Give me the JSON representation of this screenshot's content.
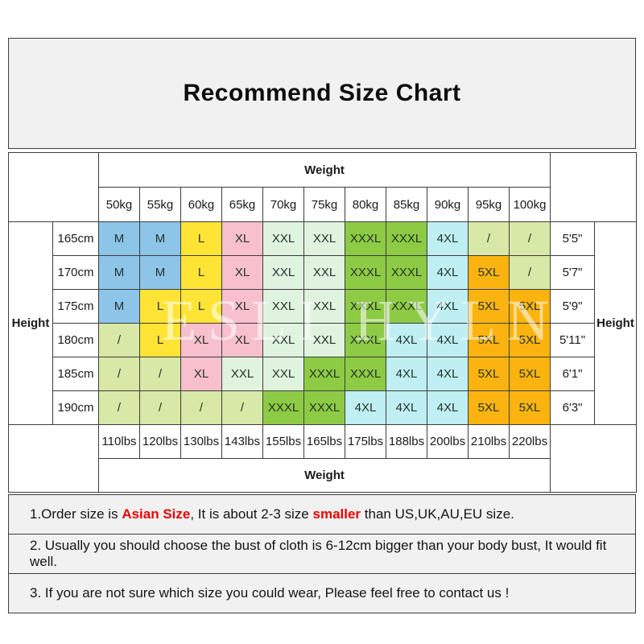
{
  "title": "Recommend Size Chart",
  "watermark": "ESLI HYLN",
  "labels": {
    "weight_top": "Weight",
    "weight_bottom": "Weight",
    "height_left": "Height",
    "height_right": "Height"
  },
  "chart_data": {
    "type": "table",
    "title": "Recommend Size Chart",
    "columns_weight_kg": [
      "50kg",
      "55kg",
      "60kg",
      "65kg",
      "70kg",
      "75kg",
      "80kg",
      "85kg",
      "90kg",
      "95kg",
      "100kg"
    ],
    "columns_weight_lbs": [
      "110lbs",
      "120lbs",
      "130lbs",
      "143lbs",
      "155lbs",
      "165lbs",
      "175lbs",
      "188lbs",
      "200lbs",
      "210lbs",
      "220lbs"
    ],
    "rows": [
      {
        "height_cm": "165cm",
        "height_ft": "5'5\"",
        "sizes": [
          "M",
          "M",
          "L",
          "XL",
          "XXL",
          "XXL",
          "XXXL",
          "XXXL",
          "4XL",
          "/",
          "/"
        ]
      },
      {
        "height_cm": "170cm",
        "height_ft": "5'7\"",
        "sizes": [
          "M",
          "M",
          "L",
          "XL",
          "XXL",
          "XXL",
          "XXXL",
          "XXXL",
          "4XL",
          "5XL",
          "/"
        ]
      },
      {
        "height_cm": "175cm",
        "height_ft": "5'9\"",
        "sizes": [
          "M",
          "L",
          "L",
          "XL",
          "XXL",
          "XXL",
          "XXXL",
          "XXXL",
          "4XL",
          "5XL",
          "5XL"
        ]
      },
      {
        "height_cm": "180cm",
        "height_ft": "5'11\"",
        "sizes": [
          "/",
          "L",
          "XL",
          "XL",
          "XXL",
          "XXL",
          "XXXL",
          "4XL",
          "4XL",
          "5XL",
          "5XL"
        ]
      },
      {
        "height_cm": "185cm",
        "height_ft": "6'1\"",
        "sizes": [
          "/",
          "/",
          "XL",
          "XXL",
          "XXL",
          "XXXL",
          "XXXL",
          "4XL",
          "4XL",
          "5XL",
          "5XL"
        ]
      },
      {
        "height_cm": "190cm",
        "height_ft": "6'3\"",
        "sizes": [
          "/",
          "/",
          "/",
          "/",
          "XXXL",
          "XXXL",
          "4XL",
          "4XL",
          "4XL",
          "5XL",
          "5XL"
        ]
      }
    ],
    "size_colors": {
      "M": "#8cc5e8",
      "L": "#ffe436",
      "XL": "#f8c0cc",
      "XXL": "#e0f3df",
      "XXXL": "#8dcb45",
      "4XL": "#bfeff2",
      "5XL": "#fbb40f",
      "/": "#d8e8a6"
    }
  },
  "notes": {
    "note1_parts": [
      {
        "text": "1.Order size is ",
        "red": false
      },
      {
        "text": "Asian Size",
        "red": true
      },
      {
        "text": ", It is about 2-3 size ",
        "red": false
      },
      {
        "text": "smaller",
        "red": true
      },
      {
        "text": " than US,UK,AU,EU size.",
        "red": false
      }
    ],
    "note2": "2. Usually you should choose the bust of cloth is 6-12cm bigger than your body bust, It would fit well.",
    "note3": "3. If you are not sure which size you could wear, Please feel free to contact us !"
  }
}
